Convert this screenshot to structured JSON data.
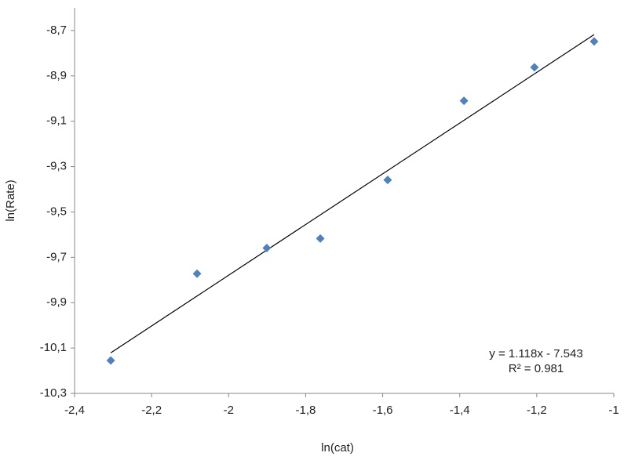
{
  "chart_data": {
    "type": "scatter",
    "x_label": "ln(cat)",
    "y_label": "ln(Rate)",
    "series": [
      {
        "color": "#4f81bd",
        "x": [
          -2.306,
          -2.082,
          -1.901,
          -1.762,
          -1.587,
          -1.389,
          -1.206,
          -1.051
        ],
        "values": [
          -10.155,
          -9.772,
          -9.659,
          -9.617,
          -9.359,
          -9.01,
          -8.862,
          -8.748
        ]
      }
    ],
    "trendline": {
      "slope": 1.118,
      "intercept": -7.543,
      "color": "#000000"
    },
    "annotations": [
      "y = 1.118x - 7.543",
      "R² = 0.981"
    ],
    "xlim": [
      -2.4,
      -1
    ],
    "xticks": [
      {
        "value": -2.4,
        "label": "-2,4"
      },
      {
        "value": -2.2,
        "label": "-2,2"
      },
      -2,
      {
        "value": -1.8,
        "label": "-1,8"
      },
      {
        "value": -1.6,
        "label": "-1,6"
      },
      {
        "value": -1.4,
        "label": "-1,4"
      },
      {
        "value": -1.2,
        "label": "-1,2"
      },
      -1
    ],
    "ylim": [
      -10.3,
      -8.6
    ],
    "yticks": [
      {
        "value": -10.3,
        "label": "-10,3"
      },
      {
        "value": -10.1,
        "label": "-10,1"
      },
      {
        "value": -9.9,
        "label": "-9,9"
      },
      {
        "value": -9.7,
        "label": "-9,7"
      },
      {
        "value": -9.5,
        "label": "-9,5"
      },
      {
        "value": -9.3,
        "label": "-9,3"
      },
      {
        "value": -9.1,
        "label": "-9,1"
      },
      {
        "value": -8.9,
        "label": "-8,9"
      },
      {
        "value": -8.7,
        "label": "-8,7"
      }
    ],
    "grid": false
  }
}
